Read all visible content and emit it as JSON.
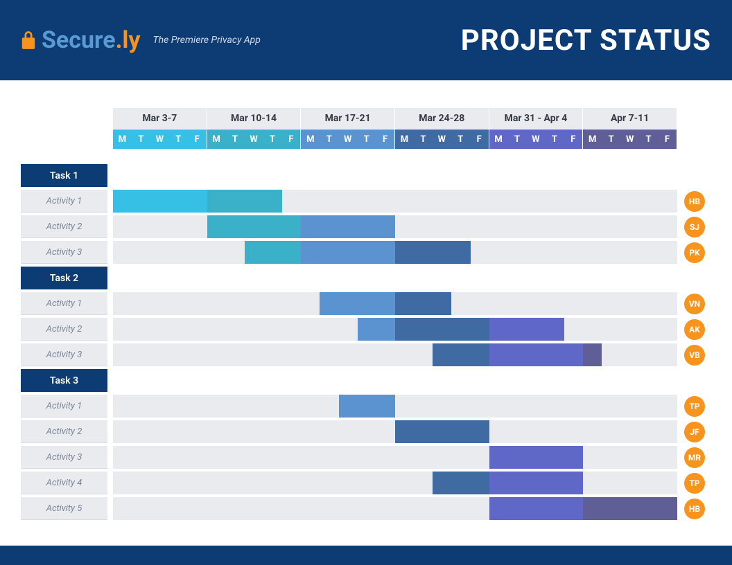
{
  "header": {
    "brand_part1": "Secure",
    "brand_part2": ".ly",
    "tagline": "The Premiere Privacy App",
    "title": "PROJECT STATUS",
    "bg_color": "#0d3b73",
    "lock_color": "#f7941d",
    "brand_part1_color": "#5a9ad3",
    "brand_part2_color": "#f7941d",
    "title_color": "#ffffff"
  },
  "timeline": {
    "total_days": 30,
    "weeks": [
      {
        "label": "Mar 3-7",
        "header_color": "#37c0e5"
      },
      {
        "label": "Mar 10-14",
        "header_color": "#3bb0c9"
      },
      {
        "label": "Mar 17-21",
        "header_color": "#5a93cf"
      },
      {
        "label": "Mar 24-28",
        "header_color": "#3f6aa2"
      },
      {
        "label": "Mar 31 - Apr 4",
        "header_color": "#6068c7"
      },
      {
        "label": "Apr 7-11",
        "header_color": "#605e97"
      }
    ],
    "days": [
      "M",
      "T",
      "W",
      "T",
      "F"
    ],
    "week_header_bg": "#e9ebee",
    "week_header_text": "#333a45"
  },
  "chart": {
    "track_bg": "#e9ebee",
    "task_label_bg": "#0d3b73",
    "task_label_text": "#ffffff",
    "activity_label_bg": "#e9ebee",
    "activity_label_text": "#7a8599",
    "assignee_bg": "#f7941d",
    "colors": {
      "c1": "#37c0e5",
      "c2": "#3bb0c9",
      "c3": "#5a93cf",
      "c4": "#3f6aa2",
      "c5": "#6068c7",
      "c6": "#605e97"
    }
  },
  "tasks": [
    {
      "name": "Task 1",
      "activities": [
        {
          "name": "Activity 1",
          "assignee": "HB",
          "bars": [
            {
              "start": 0,
              "span": 5,
              "color": "c1"
            },
            {
              "start": 5,
              "span": 4,
              "color": "c2"
            }
          ]
        },
        {
          "name": "Activity 2",
          "assignee": "SJ",
          "bars": [
            {
              "start": 5,
              "span": 5,
              "color": "c2"
            },
            {
              "start": 10,
              "span": 5,
              "color": "c3"
            }
          ]
        },
        {
          "name": "Activity 3",
          "assignee": "PK",
          "bars": [
            {
              "start": 7,
              "span": 3,
              "color": "c2"
            },
            {
              "start": 10,
              "span": 5,
              "color": "c3"
            },
            {
              "start": 15,
              "span": 4,
              "color": "c4"
            }
          ]
        }
      ]
    },
    {
      "name": "Task 2",
      "activities": [
        {
          "name": "Activity 1",
          "assignee": "VN",
          "bars": [
            {
              "start": 11,
              "span": 4,
              "color": "c3"
            },
            {
              "start": 15,
              "span": 3,
              "color": "c4"
            }
          ]
        },
        {
          "name": "Activity 2",
          "assignee": "AK",
          "bars": [
            {
              "start": 13,
              "span": 2,
              "color": "c3"
            },
            {
              "start": 15,
              "span": 5,
              "color": "c4"
            },
            {
              "start": 20,
              "span": 4,
              "color": "c5"
            }
          ]
        },
        {
          "name": "Activity 3",
          "assignee": "VB",
          "bars": [
            {
              "start": 17,
              "span": 3,
              "color": "c4"
            },
            {
              "start": 20,
              "span": 5,
              "color": "c5"
            },
            {
              "start": 25,
              "span": 1,
              "color": "c6"
            }
          ]
        }
      ]
    },
    {
      "name": "Task 3",
      "activities": [
        {
          "name": "Activity 1",
          "assignee": "TP",
          "bars": [
            {
              "start": 12,
              "span": 3,
              "color": "c3"
            }
          ]
        },
        {
          "name": "Activity 2",
          "assignee": "JF",
          "bars": [
            {
              "start": 15,
              "span": 5,
              "color": "c4"
            }
          ]
        },
        {
          "name": "Activity 3",
          "assignee": "MR",
          "bars": [
            {
              "start": 20,
              "span": 5,
              "color": "c5"
            }
          ]
        },
        {
          "name": "Activity 4",
          "assignee": "TP",
          "bars": [
            {
              "start": 17,
              "span": 3,
              "color": "c4"
            },
            {
              "start": 20,
              "span": 5,
              "color": "c5"
            }
          ]
        },
        {
          "name": "Activity 5",
          "assignee": "HB",
          "bars": [
            {
              "start": 20,
              "span": 5,
              "color": "c5"
            },
            {
              "start": 25,
              "span": 5,
              "color": "c6"
            }
          ]
        }
      ]
    }
  ]
}
